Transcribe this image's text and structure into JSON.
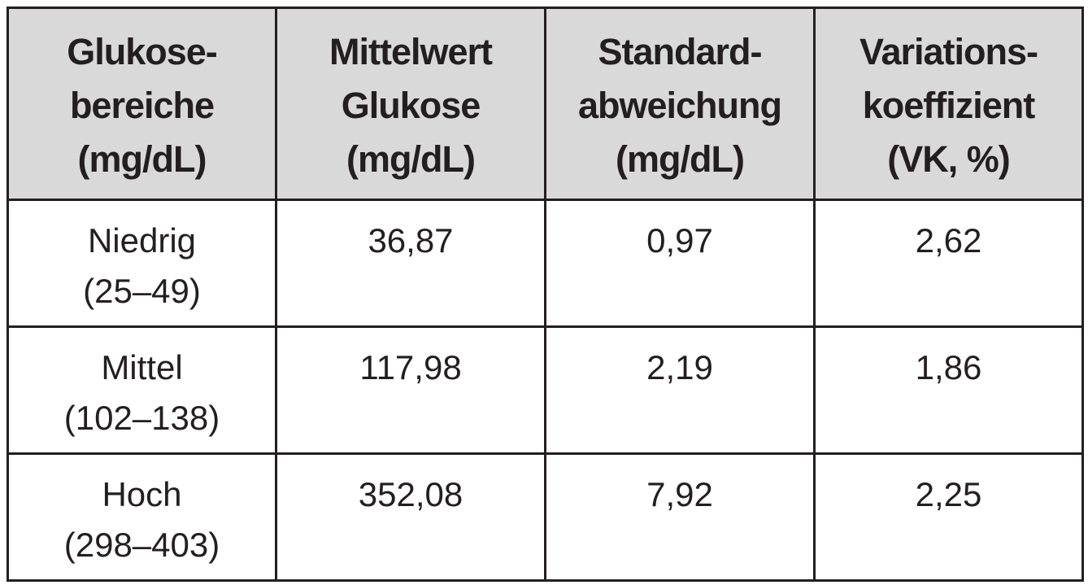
{
  "table": {
    "header": [
      [
        "Glukose-",
        "bereiche",
        "(mg/dL)"
      ],
      [
        "Mittelwert",
        "Glukose",
        "(mg/dL)"
      ],
      [
        "Standard-",
        "abweichung",
        "(mg/dL)"
      ],
      [
        "Variations-",
        "koeffizient",
        "(VK, %)"
      ]
    ],
    "rows": [
      [
        [
          "Niedrig",
          "(25–49)"
        ],
        [
          "36,87"
        ],
        [
          "0,97"
        ],
        [
          "2,62"
        ]
      ],
      [
        [
          "Mittel",
          "(102–138)"
        ],
        [
          "117,98"
        ],
        [
          "2,19"
        ],
        [
          "1,86"
        ]
      ],
      [
        [
          "Hoch",
          "(298–403)"
        ],
        [
          "352,08"
        ],
        [
          "7,92"
        ],
        [
          "2,25"
        ]
      ]
    ]
  }
}
